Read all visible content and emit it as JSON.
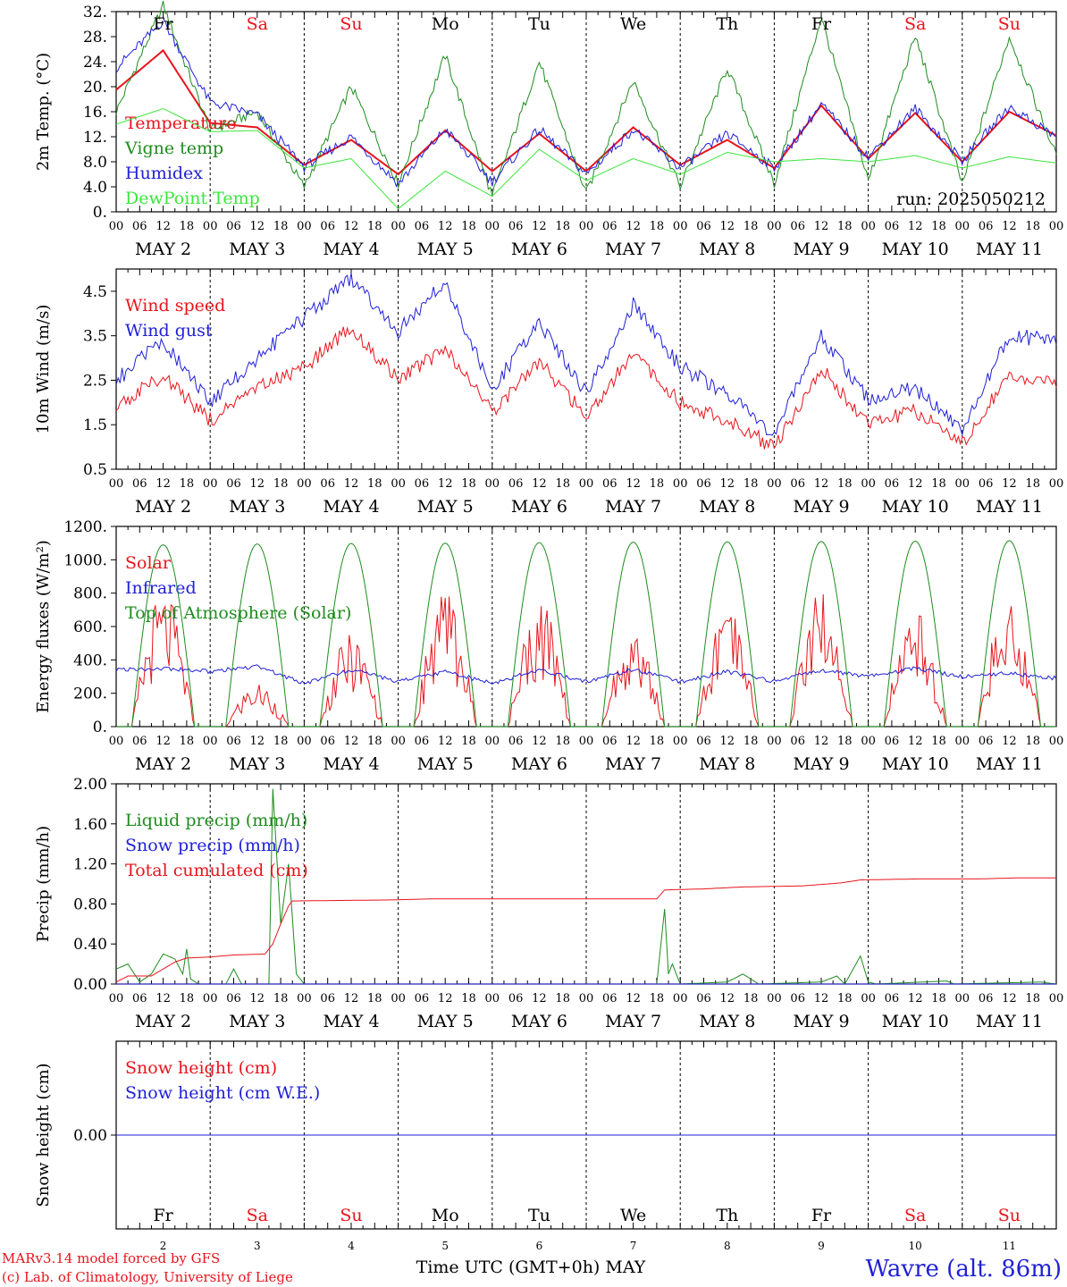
{
  "chart_data": [
    {
      "type": "line",
      "ylabel": "2m Temp. (°C)",
      "ylim": [
        0,
        32
      ],
      "yticks": [
        "0.",
        "4.0",
        "8.0",
        "12.",
        "16.",
        "20.",
        "24.",
        "28.",
        "32."
      ],
      "grid": "vertical dotted at 00 UTC",
      "legend_placement": "top-left",
      "annotation": "run: 2025050212",
      "day_names": [
        {
          "text": "Fr",
          "color": "#000000"
        },
        {
          "text": "Sa",
          "color": "#e8141c"
        },
        {
          "text": "Su",
          "color": "#e8141c"
        },
        {
          "text": "Mo",
          "color": "#000000"
        },
        {
          "text": "Tu",
          "color": "#000000"
        },
        {
          "text": "We",
          "color": "#000000"
        },
        {
          "text": "Th",
          "color": "#000000"
        },
        {
          "text": "Fr",
          "color": "#000000"
        },
        {
          "text": "Sa",
          "color": "#e8141c"
        },
        {
          "text": "Su",
          "color": "#e8141c"
        }
      ],
      "x_hours": [
        0,
        12,
        24,
        36,
        48,
        60,
        72,
        84,
        96,
        108,
        120,
        132,
        144,
        156,
        168,
        180,
        192,
        204,
        216,
        228,
        240
      ],
      "series": [
        {
          "name": "Temperature",
          "color": "#e8141c",
          "width": 2,
          "values": [
            19.5,
            25.8,
            14.2,
            13.5,
            7.5,
            11.5,
            6.0,
            13.0,
            6.5,
            12.5,
            6.5,
            13.5,
            7.5,
            11.5,
            7.0,
            17.0,
            8.5,
            15.8,
            8.0,
            16.0,
            12.2
          ]
        },
        {
          "name": "Vigne temp",
          "color": "#1e8c1e",
          "width": 1,
          "values": [
            16.0,
            33.0,
            13.0,
            16.0,
            4.0,
            20.0,
            4.5,
            25.0,
            2.5,
            24.0,
            3.0,
            21.0,
            4.0,
            23.0,
            4.5,
            31.0,
            5.0,
            28.0,
            4.5,
            28.0,
            9.0
          ]
        },
        {
          "name": "Humidex",
          "color": "#2020d8",
          "width": 1,
          "values": [
            23.0,
            30.5,
            17.5,
            15.5,
            7.2,
            12.0,
            4.5,
            13.2,
            4.8,
            13.2,
            6.0,
            13.2,
            7.0,
            12.5,
            7.0,
            17.2,
            8.8,
            16.5,
            8.2,
            16.8,
            12.0
          ]
        },
        {
          "name": "DewPoint Temp",
          "color": "#3ce63c",
          "width": 1,
          "values": [
            14.0,
            16.5,
            12.8,
            13.0,
            7.0,
            8.5,
            0.5,
            6.5,
            2.5,
            10.0,
            5.0,
            8.5,
            6.0,
            9.5,
            8.0,
            8.5,
            8.0,
            9.0,
            7.0,
            8.8,
            7.8
          ]
        }
      ]
    },
    {
      "type": "line",
      "ylabel": "10m Wind (m/s)",
      "ylim": [
        0.5,
        5.0
      ],
      "yticks": [
        "0.5",
        "1.5",
        "2.5",
        "3.5",
        "4.5"
      ],
      "legend_placement": "top-left",
      "x_hours": [
        0,
        12,
        24,
        36,
        48,
        60,
        72,
        84,
        96,
        108,
        120,
        132,
        144,
        156,
        168,
        180,
        192,
        204,
        216,
        228,
        240
      ],
      "series": [
        {
          "name": "Wind speed",
          "color": "#e8141c",
          "width": 1,
          "values": [
            1.9,
            2.6,
            1.6,
            2.3,
            2.8,
            3.7,
            2.5,
            3.2,
            1.8,
            2.9,
            1.7,
            3.1,
            2.0,
            1.6,
            1.0,
            2.8,
            1.5,
            1.8,
            1.1,
            2.6,
            2.5
          ]
        },
        {
          "name": "Wind gust",
          "color": "#2020d8",
          "width": 1,
          "values": [
            2.5,
            3.4,
            2.0,
            3.0,
            3.9,
            4.8,
            3.6,
            4.7,
            2.3,
            3.8,
            2.2,
            4.2,
            2.8,
            2.2,
            1.3,
            3.5,
            2.1,
            2.3,
            1.4,
            3.5,
            3.4
          ]
        }
      ]
    },
    {
      "type": "line",
      "ylabel": "Energy fluxes (W/m²)",
      "ylim": [
        0,
        1200
      ],
      "yticks": [
        "0.",
        "200.",
        "400.",
        "600.",
        "800.",
        "1000.",
        "1200."
      ],
      "legend_placement": "top-left",
      "series": [
        {
          "name": "Solar",
          "color": "#e8141c",
          "width": 1,
          "daily_max": [
            820,
            270,
            560,
            810,
            760,
            590,
            700,
            840,
            720,
            800
          ]
        },
        {
          "name": "Infrared",
          "color": "#2020d8",
          "width": 1,
          "x_hours": [
            0,
            12,
            24,
            36,
            48,
            60,
            72,
            84,
            96,
            108,
            120,
            132,
            144,
            156,
            168,
            180,
            192,
            204,
            216,
            228,
            240
          ],
          "values": [
            340,
            350,
            330,
            360,
            260,
            340,
            270,
            330,
            260,
            340,
            270,
            340,
            270,
            330,
            270,
            340,
            300,
            350,
            300,
            320,
            290
          ]
        },
        {
          "name": "Top of Atmosphere (Solar)",
          "color": "#1e8c1e",
          "width": 1,
          "daily_max": [
            1090,
            1095,
            1098,
            1100,
            1103,
            1106,
            1108,
            1110,
            1112,
            1115
          ]
        }
      ]
    },
    {
      "type": "line",
      "ylabel": "Precip (mm/h)",
      "ylim": [
        0,
        2.0
      ],
      "yticks": [
        "0.00",
        "0.40",
        "0.80",
        "1.20",
        "1.60",
        "2.00"
      ],
      "legend_placement": "top-left",
      "series": [
        {
          "name": "Liquid precip (mm/h)",
          "color": "#1e8c1e",
          "width": 1,
          "points": [
            [
              0,
              0.15
            ],
            [
              3,
              0.2
            ],
            [
              6,
              0.02
            ],
            [
              9,
              0.1
            ],
            [
              12,
              0.3
            ],
            [
              15,
              0.25
            ],
            [
              17,
              0.1
            ],
            [
              18,
              0.35
            ],
            [
              19,
              0.05
            ],
            [
              21,
              0
            ],
            [
              28,
              0
            ],
            [
              30,
              0.15
            ],
            [
              32,
              0.0
            ],
            [
              39,
              0.0
            ],
            [
              40,
              1.95
            ],
            [
              42,
              0.6
            ],
            [
              44,
              1.2
            ],
            [
              46,
              0.1
            ],
            [
              48,
              0
            ],
            [
              138,
              0
            ],
            [
              140,
              0.75
            ],
            [
              141,
              0.1
            ],
            [
              142,
              0.2
            ],
            [
              144,
              0
            ],
            [
              156,
              0.02
            ],
            [
              160,
              0.1
            ],
            [
              164,
              0
            ],
            [
              180,
              0.02
            ],
            [
              184,
              0.08
            ],
            [
              186,
              0
            ],
            [
              190,
              0.28
            ],
            [
              192,
              0.02
            ],
            [
              194,
              0
            ],
            [
              212,
              0.03
            ],
            [
              214,
              0
            ],
            [
              236,
              0.02
            ],
            [
              240,
              0
            ]
          ]
        },
        {
          "name": "Snow precip (mm/h)",
          "color": "#2020d8",
          "width": 1,
          "points": [
            [
              0,
              0
            ],
            [
              240,
              0
            ]
          ]
        },
        {
          "name": "Total cumulated (cm)",
          "color": "#e8141c",
          "width": 1,
          "points": [
            [
              0,
              0.02
            ],
            [
              3,
              0.08
            ],
            [
              9,
              0.08
            ],
            [
              12,
              0.15
            ],
            [
              15,
              0.22
            ],
            [
              18,
              0.26
            ],
            [
              24,
              0.27
            ],
            [
              30,
              0.29
            ],
            [
              38,
              0.3
            ],
            [
              40,
              0.4
            ],
            [
              42,
              0.6
            ],
            [
              44,
              0.78
            ],
            [
              45,
              0.83
            ],
            [
              70,
              0.84
            ],
            [
              80,
              0.85
            ],
            [
              138,
              0.85
            ],
            [
              140,
              0.94
            ],
            [
              150,
              0.95
            ],
            [
              160,
              0.97
            ],
            [
              175,
              0.98
            ],
            [
              185,
              1.01
            ],
            [
              190,
              1.04
            ],
            [
              205,
              1.05
            ],
            [
              220,
              1.05
            ],
            [
              230,
              1.06
            ],
            [
              240,
              1.06
            ]
          ]
        }
      ]
    },
    {
      "type": "line",
      "ylabel": "Snow height (cm)",
      "yticks": [
        "0.00"
      ],
      "legend_placement": "top-left",
      "series": [
        {
          "name": "Snow height (cm)",
          "color": "#e8141c",
          "width": 1,
          "points": [
            [
              0,
              0
            ],
            [
              240,
              0
            ]
          ]
        },
        {
          "name": "Snow height (cm W.E.)",
          "color": "#2020d8",
          "width": 1,
          "points": [
            [
              0,
              0
            ],
            [
              240,
              0
            ]
          ]
        }
      ]
    }
  ],
  "x_axis": {
    "hour_labels": [
      "00",
      "06",
      "12",
      "18"
    ],
    "final_hour_label": "00",
    "date_labels": [
      "MAY  2",
      "MAY  3",
      "MAY  4",
      "MAY  5",
      "MAY  6",
      "MAY  7",
      "MAY  8",
      "MAY  9",
      "MAY 10",
      "MAY 11"
    ],
    "bottom_day_numbers": [
      "2",
      "3",
      "4",
      "5",
      "6",
      "7",
      "8",
      "9",
      "10",
      "11"
    ],
    "title": "Time UTC (GMT+0h) MAY"
  },
  "footer": {
    "credit_line_1": "MARv3.14 model forced by GFS",
    "credit_line_2": "(c) Lab. of Climatology, University of Liege",
    "location": "Wavre (alt. 86m)",
    "credit_color": "#e8141c",
    "location_color": "#2020d8"
  }
}
